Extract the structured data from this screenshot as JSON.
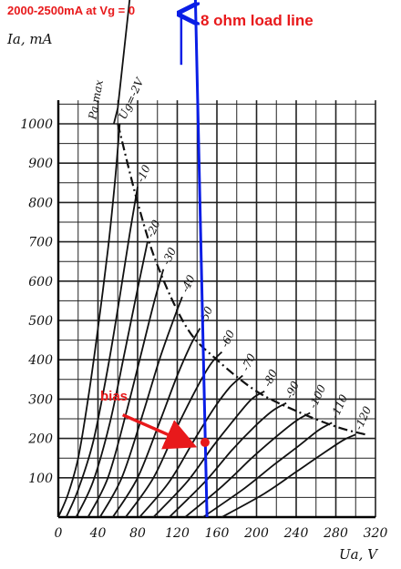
{
  "chart_data": {
    "type": "line",
    "xlabel": "Ua, V",
    "ylabel": "Ia, mA",
    "xlim": [
      0,
      320
    ],
    "ylim": [
      0,
      1000
    ],
    "x_ticks": [
      "0",
      "40",
      "80",
      "120",
      "160",
      "200",
      "240",
      "280",
      "320"
    ],
    "x_tick_values": [
      0,
      40,
      80,
      120,
      160,
      200,
      240,
      280,
      320
    ],
    "y_ticks": [
      "100",
      "200",
      "300",
      "400",
      "500",
      "600",
      "700",
      "800",
      "900",
      "1000"
    ],
    "y_tick_values": [
      100,
      200,
      300,
      400,
      500,
      600,
      700,
      800,
      900,
      1000
    ],
    "grid": true,
    "series": [
      {
        "name": "Ug=-2V",
        "label_text": "Ug=-2V",
        "points": [
          [
            0,
            0
          ],
          [
            10,
            60
          ],
          [
            20,
            150
          ],
          [
            30,
            300
          ],
          [
            40,
            480
          ],
          [
            50,
            680
          ],
          [
            57,
            850
          ],
          [
            62,
            1000
          ]
        ]
      },
      {
        "name": "-10",
        "label_text": "-10",
        "points": [
          [
            8,
            0
          ],
          [
            20,
            70
          ],
          [
            35,
            190
          ],
          [
            50,
            380
          ],
          [
            62,
            560
          ],
          [
            72,
            720
          ],
          [
            80,
            840
          ]
        ]
      },
      {
        "name": "-20",
        "label_text": "-20",
        "points": [
          [
            18,
            0
          ],
          [
            35,
            90
          ],
          [
            52,
            240
          ],
          [
            67,
            420
          ],
          [
            80,
            580
          ],
          [
            90,
            700
          ]
        ]
      },
      {
        "name": "-30",
        "label_text": "-30",
        "points": [
          [
            30,
            0
          ],
          [
            50,
            100
          ],
          [
            68,
            260
          ],
          [
            84,
            420
          ],
          [
            97,
            550
          ],
          [
            106,
            630
          ]
        ]
      },
      {
        "name": "-40",
        "label_text": "-40",
        "points": [
          [
            42,
            0
          ],
          [
            64,
            100
          ],
          [
            85,
            260
          ],
          [
            102,
            400
          ],
          [
            116,
            500
          ],
          [
            125,
            560
          ]
        ]
      },
      {
        "name": "-50",
        "label_text": "-50",
        "points": [
          [
            55,
            0
          ],
          [
            80,
            100
          ],
          [
            102,
            240
          ],
          [
            120,
            360
          ],
          [
            134,
            440
          ],
          [
            143,
            480
          ]
        ]
      },
      {
        "name": "-60",
        "label_text": "-60",
        "points": [
          [
            68,
            0
          ],
          [
            96,
            100
          ],
          [
            120,
            230
          ],
          [
            140,
            330
          ],
          [
            154,
            390
          ],
          [
            165,
            420
          ]
        ]
      },
      {
        "name": "-70",
        "label_text": "-70",
        "points": [
          [
            82,
            0
          ],
          [
            112,
            90
          ],
          [
            138,
            200
          ],
          [
            158,
            280
          ],
          [
            173,
            330
          ],
          [
            186,
            360
          ]
        ]
      },
      {
        "name": "-80",
        "label_text": "-80",
        "points": [
          [
            96,
            0
          ],
          [
            130,
            90
          ],
          [
            156,
            180
          ],
          [
            178,
            250
          ],
          [
            195,
            300
          ],
          [
            208,
            320
          ]
        ]
      },
      {
        "name": "-90",
        "label_text": "-90",
        "points": [
          [
            112,
            0
          ],
          [
            148,
            90
          ],
          [
            175,
            170
          ],
          [
            198,
            230
          ],
          [
            216,
            270
          ],
          [
            230,
            290
          ]
        ]
      },
      {
        "name": "-100",
        "label_text": "-100",
        "points": [
          [
            128,
            0
          ],
          [
            166,
            80
          ],
          [
            195,
            150
          ],
          [
            220,
            205
          ],
          [
            240,
            245
          ],
          [
            254,
            265
          ]
        ]
      },
      {
        "name": "-110",
        "label_text": "-110",
        "points": [
          [
            146,
            0
          ],
          [
            186,
            70
          ],
          [
            216,
            130
          ],
          [
            242,
            180
          ],
          [
            262,
            220
          ],
          [
            276,
            240
          ]
        ]
      },
      {
        "name": "-120",
        "label_text": "-120",
        "points": [
          [
            165,
            0
          ],
          [
            208,
            60
          ],
          [
            240,
            115
          ],
          [
            266,
            160
          ],
          [
            287,
            195
          ],
          [
            300,
            210
          ]
        ]
      }
    ],
    "pd_max_label": "Pa max",
    "pd_max_curve": [
      [
        60,
        1000
      ],
      [
        80,
        800
      ],
      [
        100,
        640
      ],
      [
        130,
        480
      ],
      [
        160,
        400
      ],
      [
        200,
        320
      ],
      [
        240,
        270
      ],
      [
        280,
        230
      ],
      [
        310,
        210
      ]
    ],
    "load_line": {
      "label": "8 ohm load line",
      "points": [
        [
          138,
          1350
        ],
        [
          150,
          0
        ]
      ]
    },
    "bias_point": {
      "label": "bias",
      "x": 148,
      "y": 190
    },
    "annotations": {
      "top_note": "2000-2500mA at Vg = 0"
    },
    "colors": {
      "curves": "#111111",
      "load_line": "#0a1ee6",
      "annotation": "#e8191b",
      "grid": "#222222"
    }
  }
}
